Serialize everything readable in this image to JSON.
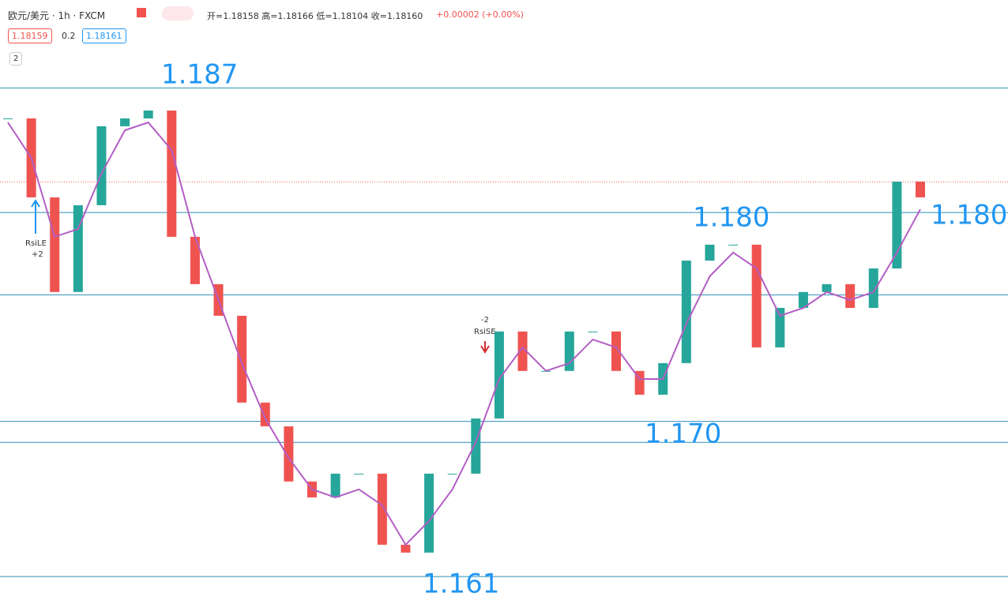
{
  "header": {
    "symbol": "欧元/美元 · 1h · FXCM",
    "ohlc": "开=1.18158 高=1.18166 低=1.18104 收=1.18160",
    "change": "+0.00002 (+0.00%)",
    "bid": "1.18159",
    "spread": "0.2",
    "ask": "1.18161",
    "indicators": "2"
  },
  "chart_data": {
    "type": "candlestick",
    "ylim": [
      1.15915,
      1.19109
    ],
    "closes": [
      1.18491,
      1.18079,
      1.17585,
      1.18038,
      1.1845,
      1.18491,
      1.18532,
      1.17873,
      1.17626,
      1.17461,
      1.17008,
      1.16884,
      1.16596,
      1.16513,
      1.16637,
      1.16637,
      1.16266,
      1.16225,
      1.16637,
      1.16637,
      1.16925,
      1.17379,
      1.17173,
      1.17173,
      1.17379,
      1.17379,
      1.17173,
      1.17049,
      1.17214,
      1.17749,
      1.17832,
      1.17832,
      1.17296,
      1.17502,
      1.17585,
      1.17626,
      1.17502,
      1.17708,
      1.18161,
      1.18079
    ],
    "ma": [
      1.1847,
      1.18285,
      1.17873,
      1.17914,
      1.18203,
      1.18429,
      1.1847,
      1.18326,
      1.17873,
      1.17543,
      1.17214,
      1.16925,
      1.16719,
      1.16555,
      1.16513,
      1.16555,
      1.16472,
      1.16266,
      1.1639,
      1.16555,
      1.16802,
      1.17131,
      1.17296,
      1.17173,
      1.17214,
      1.17337,
      1.17296,
      1.17131,
      1.17131,
      1.1742,
      1.17667,
      1.17791,
      1.17708,
      1.17461,
      1.17502,
      1.17585,
      1.17543,
      1.17585,
      1.17791,
      1.18017
    ],
    "levels": [
      1.1865,
      1.18,
      1.1757,
      1.1691,
      1.168,
      1.161
    ],
    "last_price": 1.1816,
    "up_color": "#26a69a",
    "down_color": "#ef5350",
    "ma_color": "#b35ec4",
    "level_color": "#2b8fb8"
  },
  "annotations": {
    "level_labels": [
      "1.187",
      "1.180",
      "1.180",
      "1.170",
      "1.161"
    ],
    "signals": [
      "RsiLE",
      "+2",
      "-2",
      "RsiSE"
    ]
  }
}
